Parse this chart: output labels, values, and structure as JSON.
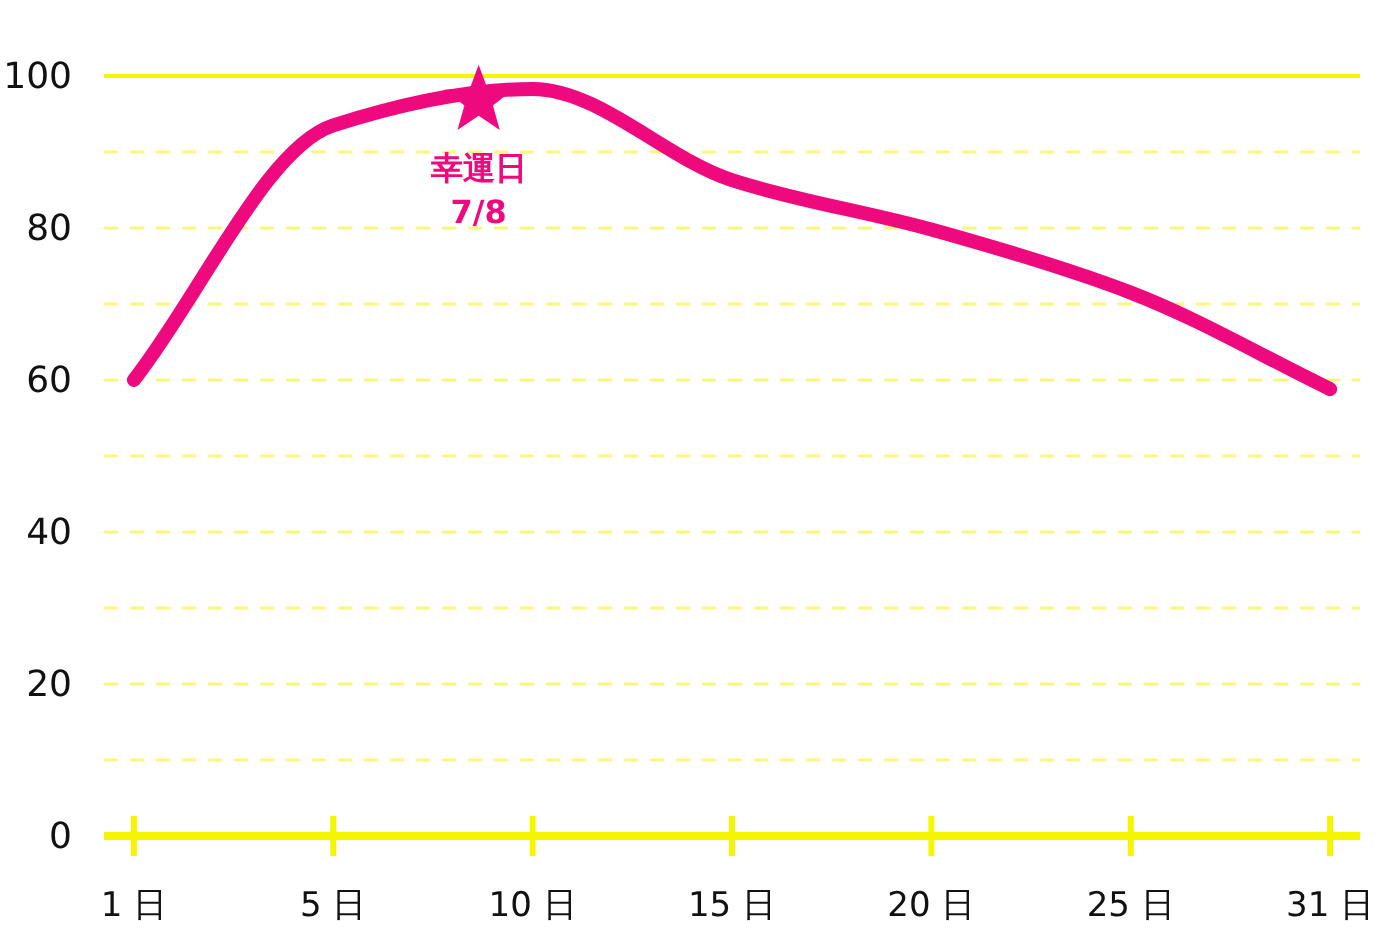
{
  "chart_data": {
    "type": "line",
    "categories": [
      "1 日",
      "5 日",
      "10 日",
      "15 日",
      "20 日",
      "25 日",
      "31 日"
    ],
    "series": [
      {
        "color": "#ee0a7e",
        "values": [
          60,
          93.5,
          98.3,
          86.3,
          79.8,
          71.5,
          58.8
        ]
      }
    ],
    "ylim": [
      0,
      100
    ],
    "yticks": [
      0,
      {
        "value": 10,
        "label": null
      },
      20,
      {
        "value": 30,
        "label": null
      },
      40,
      {
        "value": 50,
        "label": null
      },
      60,
      {
        "value": 70,
        "label": null
      },
      80,
      {
        "value": 90,
        "label": null
      },
      100
    ],
    "grid": "y",
    "marker": "none",
    "line_style": "solid",
    "annotations": [
      {
        "text": "幸運日\n7/8",
        "y": 97
      }
    ]
  }
}
